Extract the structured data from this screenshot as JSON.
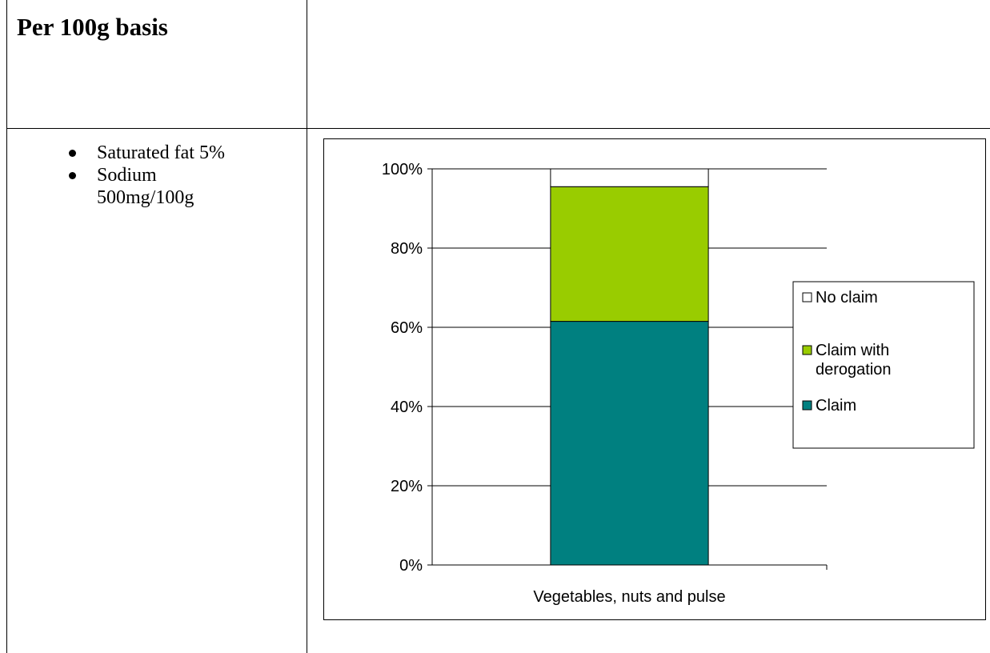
{
  "page": {
    "heading": "Per 100g basis",
    "criteria": [
      "Saturated fat 5%",
      "Sodium 500mg/100g"
    ]
  },
  "colors": {
    "Claim": "#008080",
    "Claim with derogation": "#99cc00",
    "No claim": "#ffffff"
  },
  "chart_data": {
    "type": "bar",
    "stacked": true,
    "categories": [
      "Vegetables, nuts and pulse"
    ],
    "series": [
      {
        "name": "Claim",
        "values": [
          61.5
        ]
      },
      {
        "name": "Claim with derogation",
        "values": [
          34
        ]
      },
      {
        "name": "No claim",
        "values": [
          4.5
        ]
      }
    ],
    "yticks": [
      "0%",
      "20%",
      "40%",
      "60%",
      "80%",
      "100%"
    ],
    "ylim": [
      0,
      100
    ],
    "grid": true,
    "legend_position": "right",
    "legend": [
      "No claim",
      "Claim with derogation",
      "Claim"
    ]
  }
}
